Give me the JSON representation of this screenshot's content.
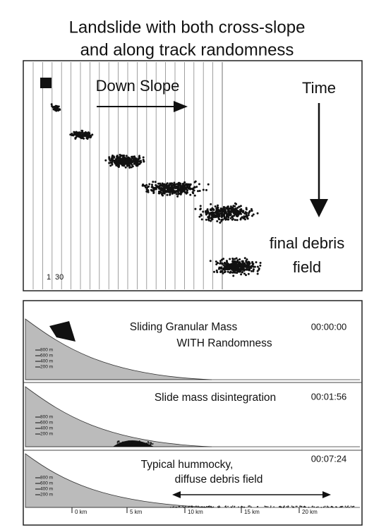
{
  "title_lines": [
    "Landslide with both cross-slope",
    "and along track randomness"
  ],
  "sequence_panel": {
    "direction_label": "Down Slope",
    "time_label": "Time",
    "final_label_lines": [
      "final debris",
      "field"
    ],
    "frame_numbers": [
      "1",
      "30"
    ]
  },
  "profile_panels": [
    {
      "caption_lines": [
        "Sliding Granular Mass",
        "WITH Randomness"
      ],
      "timestamp": "00:00:00"
    },
    {
      "caption_lines": [
        "Slide mass disintegration"
      ],
      "timestamp": "00:01:56"
    },
    {
      "caption_lines": [
        "Typical hummocky,",
        "diffuse debris field"
      ],
      "timestamp": "00:07:24"
    }
  ],
  "elevation_labels": [
    "800 m",
    "600 m",
    "400 m",
    "200 m"
  ],
  "distance_labels": [
    "0 km",
    "5 km",
    "10 km",
    "15 km",
    "20 km"
  ]
}
